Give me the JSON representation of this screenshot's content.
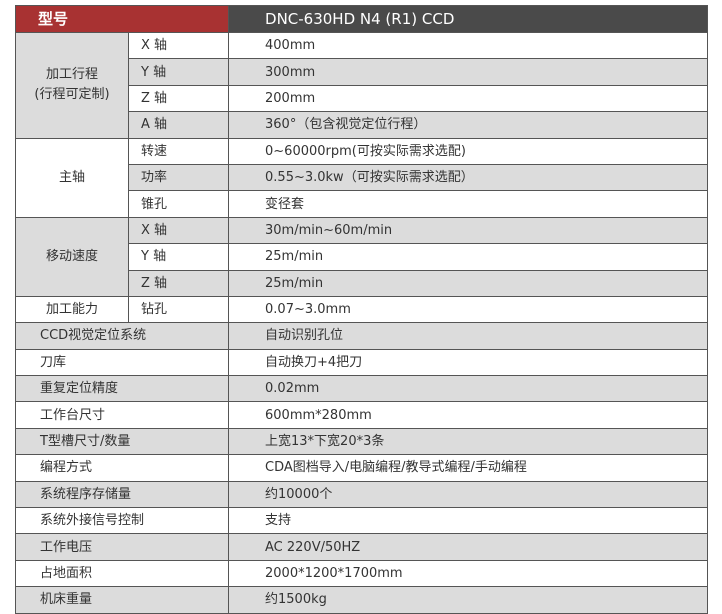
{
  "header": {
    "label": "型号",
    "model": "DNC-630HD N4 (R1) CCD"
  },
  "groups": [
    {
      "name": "加工行程",
      "name2": "(行程可定制)",
      "rows": [
        [
          "X 轴",
          "400mm"
        ],
        [
          "Y 轴",
          "300mm"
        ],
        [
          "Z 轴",
          "200mm"
        ],
        [
          "A 轴",
          "360°（包含视觉定位行程）"
        ]
      ]
    },
    {
      "name": "主轴",
      "rows": [
        [
          "转速",
          "0~60000rpm(可按实际需求选配)"
        ],
        [
          "功率",
          "0.55~3.0kw（可按实际需求选配）"
        ],
        [
          "锥孔",
          "变径套"
        ]
      ]
    },
    {
      "name": "移动速度",
      "rows": [
        [
          "X 轴",
          "30m/min~60m/min"
        ],
        [
          "Y 轴",
          "25m/min"
        ],
        [
          "Z 轴",
          "25m/min"
        ]
      ]
    },
    {
      "name": "加工能力",
      "rows": [
        [
          "钻孔",
          "0.07~3.0mm"
        ]
      ]
    }
  ],
  "rows": [
    [
      "CCD视觉定位系统",
      "自动识别孔位"
    ],
    [
      "刀库",
      "自动换刀+4把刀"
    ],
    [
      "重复定位精度",
      "0.02mm"
    ],
    [
      "工作台尺寸",
      "600mm*280mm"
    ],
    [
      "T型槽尺寸/数量",
      "上宽13*下宽20*3条"
    ],
    [
      "编程方式",
      "CDA图档导入/电脑编程/教导式编程/手动编程"
    ],
    [
      "系统程序存储量",
      "约10000个"
    ],
    [
      "系统外接信号控制",
      "支持"
    ],
    [
      "工作电压",
      "AC 220V/50HZ"
    ],
    [
      "占地面积",
      "2000*1200*1700mm"
    ],
    [
      "机床重量",
      "约1500kg"
    ]
  ],
  "colors": {
    "header_label_bg": "#a83232",
    "header_model_bg": "#4a4a4a",
    "stripe": "#dcdcdc"
  }
}
